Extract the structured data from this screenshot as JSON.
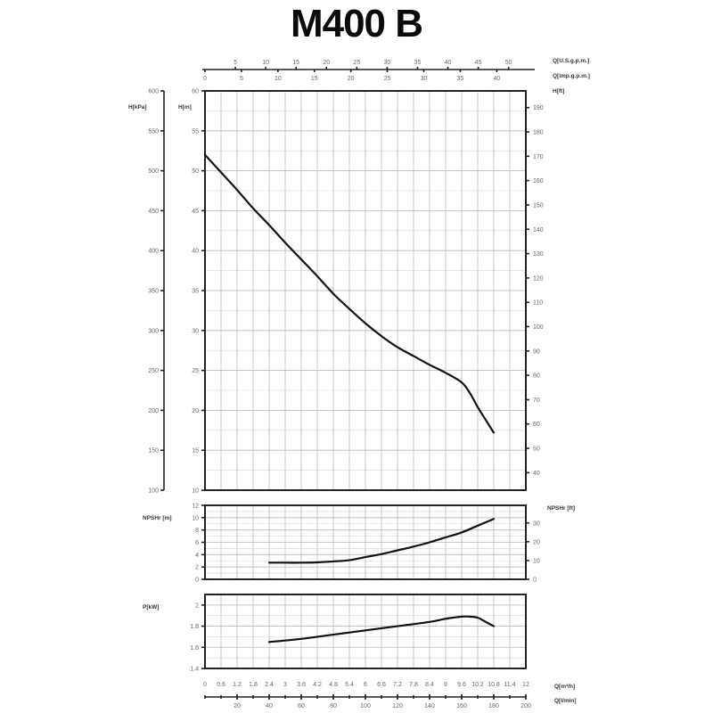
{
  "title": "M400 B",
  "chart_data": [
    {
      "type": "line",
      "title": "M400 B",
      "panel": "head",
      "xlabel": "Q[m³/h]",
      "ylabel": "H[m]",
      "ylabel_alt_left": "H[kPa]",
      "ylabel_right": "H[ft]",
      "xlim": [
        0,
        12
      ],
      "ylim": [
        10,
        60
      ],
      "y_ticks": [
        10,
        15,
        20,
        25,
        30,
        35,
        40,
        45,
        50,
        55,
        60
      ],
      "y_ticks_kpa": [
        100,
        150,
        200,
        250,
        300,
        350,
        400,
        450,
        500,
        550,
        600
      ],
      "y_ticks_ft": [
        40,
        50,
        60,
        70,
        80,
        90,
        100,
        110,
        120,
        130,
        140,
        150,
        160,
        170,
        180,
        190
      ],
      "grid": true,
      "series": [
        {
          "name": "H",
          "x": [
            0,
            0.6,
            1.2,
            1.8,
            2.4,
            3.0,
            3.6,
            4.2,
            4.8,
            5.4,
            6.0,
            6.6,
            7.2,
            7.8,
            8.4,
            9.0,
            9.6,
            9.9,
            10.2,
            10.5,
            10.8
          ],
          "values": [
            52,
            49.8,
            47.6,
            45.3,
            43.2,
            41.0,
            38.9,
            36.8,
            34.6,
            32.7,
            30.9,
            29.3,
            27.9,
            26.8,
            25.7,
            24.7,
            23.5,
            22.2,
            20.4,
            18.8,
            17.2
          ]
        }
      ]
    },
    {
      "type": "line",
      "panel": "npsh",
      "xlabel": "Q[m³/h]",
      "ylabel": "NPSHr [m]",
      "ylabel_right": "NPSHr [ft]",
      "xlim": [
        0,
        12
      ],
      "ylim": [
        0,
        12
      ],
      "y_ticks": [
        0,
        2,
        4,
        6,
        8,
        10,
        12
      ],
      "y_ticks_ft": [
        0,
        10,
        20,
        30
      ],
      "grid": true,
      "series": [
        {
          "name": "NPSHr",
          "x": [
            2.4,
            3.0,
            3.6,
            4.2,
            4.8,
            5.4,
            6.0,
            6.6,
            7.2,
            7.8,
            8.4,
            9.0,
            9.6,
            10.2,
            10.8
          ],
          "values": [
            2.7,
            2.7,
            2.7,
            2.75,
            2.9,
            3.1,
            3.6,
            4.1,
            4.7,
            5.3,
            6.0,
            6.8,
            7.6,
            8.7,
            9.8
          ]
        }
      ]
    },
    {
      "type": "line",
      "panel": "power",
      "xlabel": "Q[m³/h]",
      "ylabel": "P[kW]",
      "xlim": [
        0,
        12
      ],
      "ylim": [
        1.4,
        2.1
      ],
      "y_ticks": [
        1.4,
        1.6,
        1.8,
        2
      ],
      "grid": true,
      "series": [
        {
          "name": "P",
          "x": [
            2.4,
            3.6,
            4.8,
            6.0,
            7.2,
            8.4,
            9.0,
            9.6,
            9.9,
            10.2,
            10.5,
            10.8
          ],
          "values": [
            1.65,
            1.68,
            1.72,
            1.76,
            1.8,
            1.84,
            1.87,
            1.89,
            1.89,
            1.88,
            1.84,
            1.8
          ]
        }
      ]
    }
  ],
  "axes": {
    "top_usgpm": {
      "label": "Q[U.S.g.p.m.]",
      "ticks": [
        "5",
        "10",
        "15",
        "20",
        "25",
        "30",
        "35",
        "40",
        "45",
        "50"
      ]
    },
    "top_impgpm": {
      "label": "Q[imp.g.p.m.]",
      "ticks": [
        "0",
        "5",
        "10",
        "15",
        "20",
        "25",
        "30",
        "35",
        "40"
      ]
    },
    "right_ft": {
      "label": "H[ft]",
      "ticks": [
        "40",
        "50",
        "60",
        "70",
        "80",
        "90",
        "100",
        "110",
        "120",
        "130",
        "140",
        "150",
        "160",
        "170",
        "180",
        "190"
      ]
    },
    "left_kpa": {
      "label": "H[kPa]",
      "ticks": [
        "100",
        "150",
        "200",
        "250",
        "300",
        "350",
        "400",
        "450",
        "500",
        "550",
        "600"
      ]
    },
    "left_m": {
      "label": "H[m]",
      "ticks": [
        "10",
        "15",
        "20",
        "25",
        "30",
        "35",
        "40",
        "45",
        "50",
        "55",
        "60"
      ]
    },
    "npsh_left": {
      "label": "NPSHr [m]",
      "ticks": [
        "0",
        "2",
        "4",
        "6",
        "8",
        "10",
        "12"
      ]
    },
    "npsh_right": {
      "label": "NPSHr [ft]",
      "ticks": [
        "0",
        "10",
        "20",
        "30"
      ]
    },
    "power_left": {
      "label": "P[kW]",
      "ticks": [
        "1.4",
        "1.6",
        "1.8",
        "2"
      ]
    },
    "bottom_m3h": {
      "label": "Q[m³/h]",
      "ticks": [
        "0",
        "0.6",
        "1.2",
        "1.8",
        "2.4",
        "3",
        "3.6",
        "4.2",
        "4.8",
        "5.4",
        "6",
        "6.6",
        "7.2",
        "7.8",
        "8.4",
        "9",
        "9.6",
        "10.2",
        "10.8",
        "11.4",
        "12"
      ]
    },
    "bottom_lmin": {
      "label": "Q[l/min]",
      "ticks": [
        "20",
        "40",
        "60",
        "80",
        "100",
        "120",
        "140",
        "160",
        "180",
        "200"
      ]
    }
  }
}
